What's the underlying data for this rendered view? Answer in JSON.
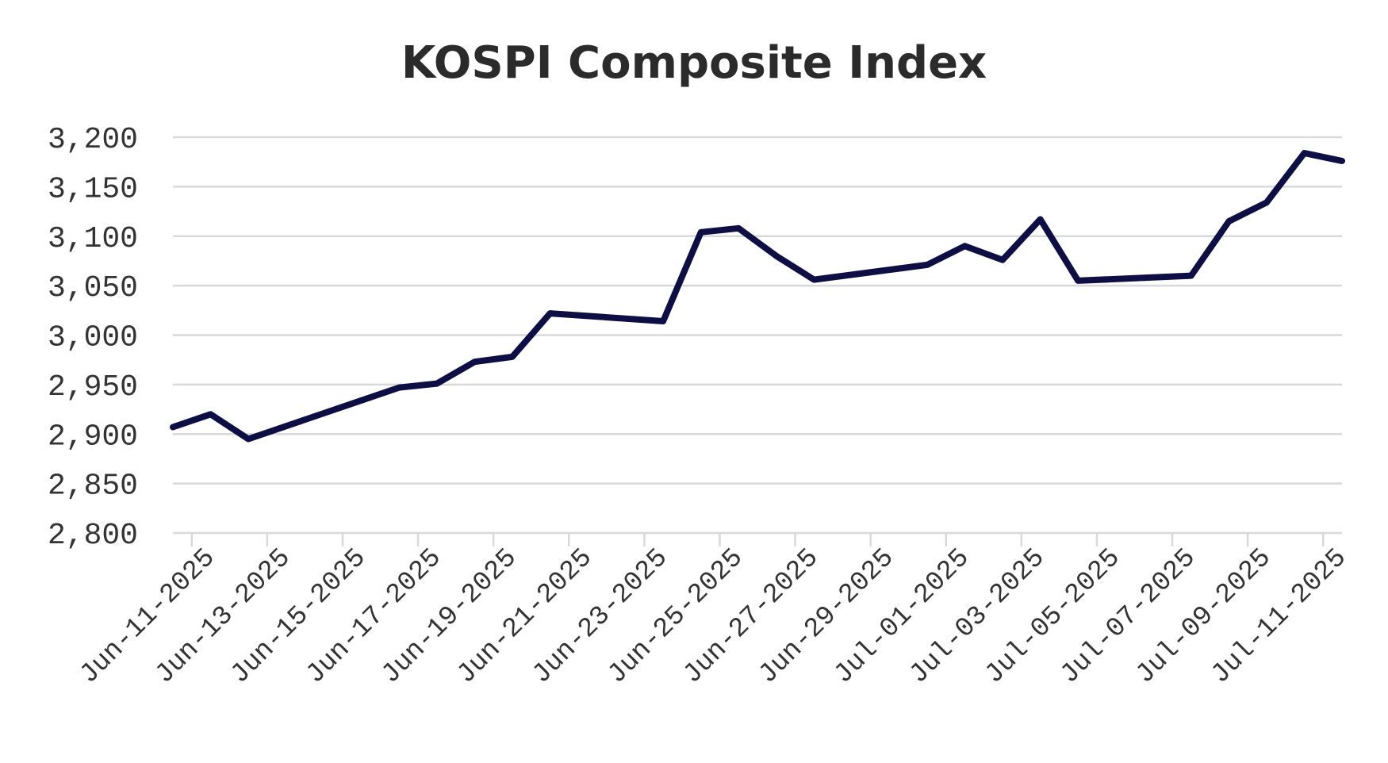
{
  "chart_data": {
    "type": "line",
    "title": "KOSPI Composite Index",
    "xlabel": "",
    "ylabel": "",
    "ylim": [
      2800,
      3200
    ],
    "yticks": [
      "2,800",
      "2,850",
      "2,900",
      "2,950",
      "3,000",
      "3,050",
      "3,100",
      "3,150",
      "3,200"
    ],
    "xlim": [
      "2025-06-10",
      "2025-07-11"
    ],
    "xticks": [
      {
        "date": "2025-06-11",
        "label": "Jun-11-2025"
      },
      {
        "date": "2025-06-13",
        "label": "Jun-13-2025"
      },
      {
        "date": "2025-06-15",
        "label": "Jun-15-2025"
      },
      {
        "date": "2025-06-17",
        "label": "Jun-17-2025"
      },
      {
        "date": "2025-06-19",
        "label": "Jun-19-2025"
      },
      {
        "date": "2025-06-21",
        "label": "Jun-21-2025"
      },
      {
        "date": "2025-06-23",
        "label": "Jun-23-2025"
      },
      {
        "date": "2025-06-25",
        "label": "Jun-25-2025"
      },
      {
        "date": "2025-06-27",
        "label": "Jun-27-2025"
      },
      {
        "date": "2025-06-29",
        "label": "Jun-29-2025"
      },
      {
        "date": "2025-07-01",
        "label": "Jul-01-2025"
      },
      {
        "date": "2025-07-03",
        "label": "Jul-03-2025"
      },
      {
        "date": "2025-07-05",
        "label": "Jul-05-2025"
      },
      {
        "date": "2025-07-07",
        "label": "Jul-07-2025"
      },
      {
        "date": "2025-07-09",
        "label": "Jul-09-2025"
      },
      {
        "date": "2025-07-11",
        "label": "Jul-11-2025"
      }
    ],
    "grid": true,
    "series": [
      {
        "color": "#0d0f44",
        "x": [
          "2025-06-10",
          "2025-06-11",
          "2025-06-12",
          "2025-06-16",
          "2025-06-17",
          "2025-06-18",
          "2025-06-19",
          "2025-06-20",
          "2025-06-23",
          "2025-06-24",
          "2025-06-25",
          "2025-06-26",
          "2025-06-27",
          "2025-06-30",
          "2025-07-01",
          "2025-07-02",
          "2025-07-03",
          "2025-07-04",
          "2025-07-07",
          "2025-07-08",
          "2025-07-09",
          "2025-07-10",
          "2025-07-11"
        ],
        "y": [
          2907,
          2920,
          2895,
          2947,
          2951,
          2973,
          2978,
          3022,
          3014,
          3104,
          3108,
          3080,
          3056,
          3071,
          3090,
          3076,
          3117,
          3055,
          3060,
          3115,
          3134,
          3184,
          3176
        ]
      }
    ]
  }
}
